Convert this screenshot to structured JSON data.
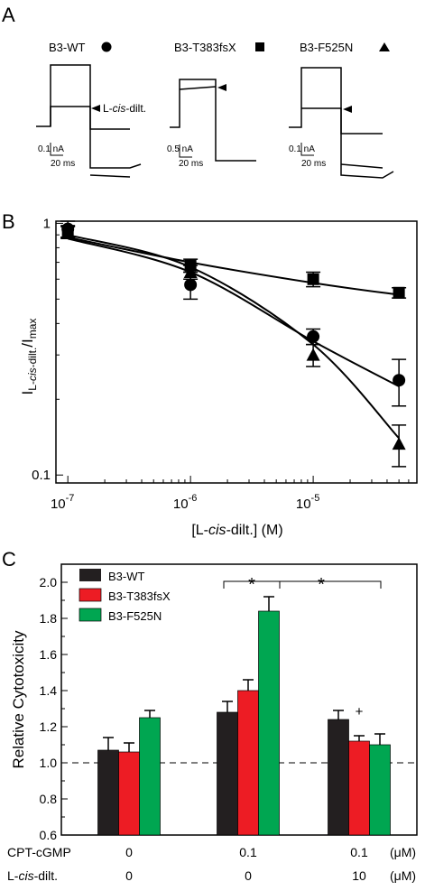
{
  "panels": {
    "a": {
      "label": "A",
      "traces": [
        {
          "name": "B3-WT",
          "symbol": "circle",
          "arrow_label": "L-cis-dilt.",
          "scale_y": "0.1 nA",
          "scale_x": "20 ms"
        },
        {
          "name": "B3-T383fsX",
          "symbol": "square",
          "arrow_label": "",
          "scale_y": "0.5 nA",
          "scale_x": "20 ms"
        },
        {
          "name": "B3-F525N",
          "symbol": "triangle",
          "arrow_label": "",
          "scale_y": "0.1 nA",
          "scale_x": "20 ms"
        }
      ]
    },
    "b": {
      "label": "B"
    },
    "c": {
      "label": "C"
    }
  },
  "chart_data": [
    {
      "type": "scatter",
      "panel": "B",
      "xscale": "log",
      "yscale": "log",
      "xlim": [
        1e-07,
        5e-05
      ],
      "ylim": [
        0.1,
        1
      ],
      "xlabel": "[L-cis-dilt.] (M)",
      "ylabel": "IL-cis-dilt./Imax",
      "xticks": [
        "10-7",
        "10-6",
        "10-5"
      ],
      "yticks": [
        "1",
        "0.1"
      ],
      "x": [
        1e-07,
        1e-06,
        1e-05,
        5e-05
      ],
      "series": [
        {
          "symbol": "circle",
          "values": [
            0.95,
            0.57,
            0.355,
            0.238
          ],
          "errors": [
            0.07,
            0.07,
            0.025,
            0.05
          ],
          "fit_at_x": [
            0.87,
            0.64,
            0.34,
            0.225
          ]
        },
        {
          "symbol": "square",
          "values": [
            0.93,
            0.68,
            0.6,
            0.53
          ],
          "errors": [
            0.05,
            0.04,
            0.04,
            0.025
          ],
          "fit_at_x": [
            0.88,
            0.7,
            0.58,
            0.52
          ]
        },
        {
          "symbol": "triangle",
          "values": [
            0.92,
            0.64,
            0.3,
            0.133
          ],
          "errors": [
            0.05,
            0.04,
            0.03,
            0.025
          ],
          "fit_at_x": [
            0.9,
            0.67,
            0.33,
            0.14
          ]
        }
      ]
    },
    {
      "type": "bar",
      "panel": "C",
      "ylabel": "Relative Cytotoxicity",
      "ylim": [
        0.6,
        2.1
      ],
      "yticks": [
        "0.6",
        "0.8",
        "1.0",
        "1.2",
        "1.4",
        "1.6",
        "1.8",
        "2.0"
      ],
      "baseline": 1.0,
      "rows": [
        {
          "label": "CPT-cGMP",
          "values": [
            "0",
            "0.1",
            "0.1"
          ],
          "unit": "(μM)"
        },
        {
          "label": "L-cis-dilt.",
          "values": [
            "0",
            "0",
            "10"
          ],
          "unit": "(μM)"
        }
      ],
      "series": [
        {
          "name": "B3-WT",
          "color": "#231f20",
          "values": [
            1.07,
            1.28,
            1.24
          ],
          "errors": [
            0.07,
            0.06,
            0.05
          ]
        },
        {
          "name": "B3-T383fsX",
          "color": "#ed1c24",
          "values": [
            1.06,
            1.4,
            1.12
          ],
          "errors": [
            0.05,
            0.06,
            0.03
          ]
        },
        {
          "name": "B3-F525N",
          "color": "#00a651",
          "values": [
            1.25,
            1.84,
            1.1
          ],
          "errors": [
            0.04,
            0.08,
            0.06
          ]
        }
      ],
      "annotations": [
        "*",
        "*",
        "+"
      ]
    }
  ]
}
